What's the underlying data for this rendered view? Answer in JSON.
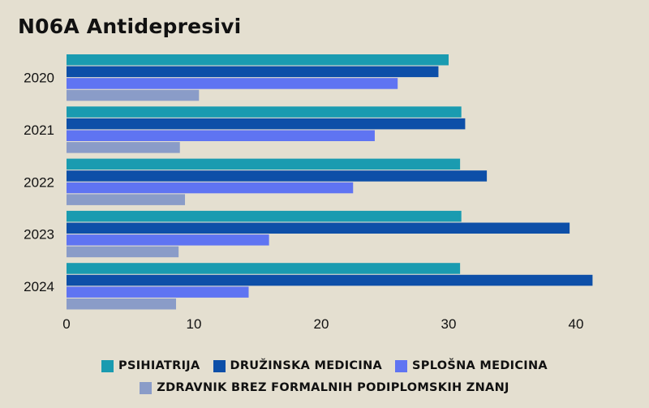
{
  "chart_data": {
    "type": "bar",
    "orientation": "horizontal",
    "title": "N06A Antidepresivi",
    "categories": [
      "2020",
      "2021",
      "2022",
      "2023",
      "2024"
    ],
    "series": [
      {
        "name": "PSIHIATRIJA",
        "color": "#1a9bb0",
        "values": [
          30.0,
          31.0,
          30.9,
          31.0,
          30.9
        ]
      },
      {
        "name": "DRUŽINSKA MEDICINA",
        "color": "#0d4fa8",
        "values": [
          29.2,
          31.3,
          33.0,
          39.5,
          41.3
        ]
      },
      {
        "name": "SPLOŠNA MEDICINA",
        "color": "#5f74f2",
        "values": [
          26.0,
          24.2,
          22.5,
          15.9,
          14.3
        ]
      },
      {
        "name": "ZDRAVNIK BREZ FORMALNIH PODIPLOMSKIH ZNANJ",
        "color": "#8a9cc8",
        "values": [
          10.4,
          8.9,
          9.3,
          8.8,
          8.6
        ]
      }
    ],
    "xticks": [
      "0",
      "10",
      "20",
      "30",
      "40"
    ],
    "xlim": [
      0,
      43.5
    ],
    "grid": false,
    "legend_position": "bottom"
  }
}
